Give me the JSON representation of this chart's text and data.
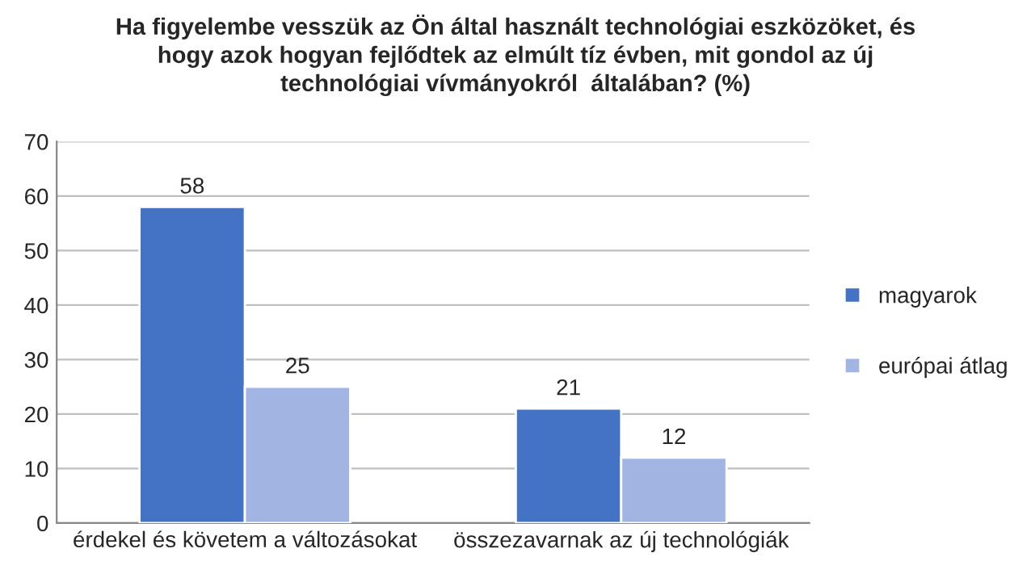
{
  "chart_data": {
    "type": "bar",
    "title": "Ha figyelembe vesszük az Ön által használt technológiai eszközöket, és\nhogy azok hogyan fejlődtek az elmúlt tíz évben, mit gondol az új\ntechnológiai vívmányokról  általában? (%)",
    "categories": [
      "érdekel és követem a változásokat",
      "összezavarnak az új technológiák"
    ],
    "series": [
      {
        "name": "magyarok",
        "color": "#4472c4",
        "values": [
          58,
          21
        ]
      },
      {
        "name": "európai átlag",
        "color": "#a2b4e2",
        "values": [
          25,
          12
        ]
      }
    ],
    "ylim": [
      0,
      70
    ],
    "yticks": [
      0,
      10,
      20,
      30,
      40,
      50,
      60,
      70
    ],
    "grid": "y",
    "legend": "right",
    "data_labels": true
  }
}
